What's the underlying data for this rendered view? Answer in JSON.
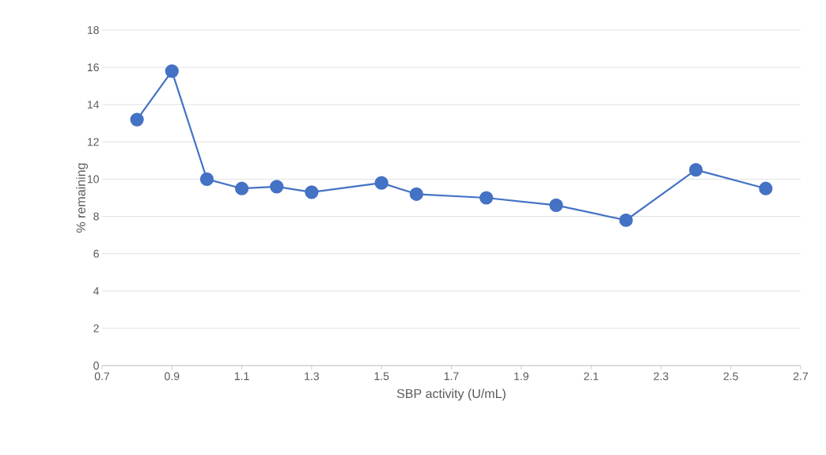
{
  "chart_data": {
    "type": "line",
    "xlabel": "SBP activity (U/mL)",
    "ylabel": "% remaining",
    "x": [
      0.8,
      0.9,
      1.0,
      1.1,
      1.2,
      1.3,
      1.5,
      1.6,
      1.8,
      2.0,
      2.2,
      2.4,
      2.6
    ],
    "series": [
      {
        "color": "#4472c4",
        "values": [
          13.2,
          15.8,
          10.0,
          9.5,
          9.6,
          9.3,
          9.8,
          9.2,
          9.0,
          8.6,
          7.8,
          10.5,
          9.5
        ]
      }
    ],
    "xlim": [
      0.7,
      2.7
    ],
    "xticks": [
      0.7,
      0.9,
      1.1,
      1.3,
      1.5,
      1.7,
      1.9,
      2.1,
      2.3,
      2.5,
      2.7
    ],
    "ylim": [
      0,
      18
    ],
    "yticks": [
      0,
      2,
      4,
      6,
      8,
      10,
      12,
      14,
      16,
      18
    ],
    "grid": "y",
    "marker": "circle",
    "line_style": "solid",
    "legend": false
  }
}
